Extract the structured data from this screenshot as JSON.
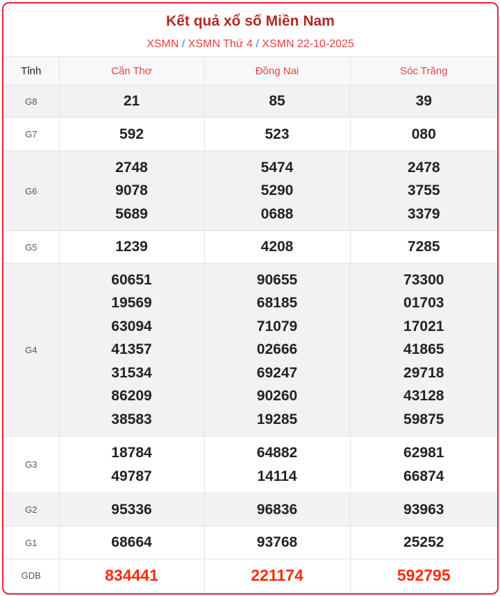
{
  "header": {
    "title": "Kết quả xổ số Miền Nam",
    "breadcrumb": [
      "XSMN",
      "XSMN Thứ 4",
      "XSMN 22-10-2025"
    ],
    "separator": "/"
  },
  "table": {
    "label_header": "Tỉnh",
    "provinces": [
      "Cần Thơ",
      "Đồng Nai",
      "Sóc Trăng"
    ],
    "rows": [
      {
        "label": "G8",
        "values": [
          [
            "21"
          ],
          [
            "85"
          ],
          [
            "39"
          ]
        ]
      },
      {
        "label": "G7",
        "values": [
          [
            "592"
          ],
          [
            "523"
          ],
          [
            "080"
          ]
        ]
      },
      {
        "label": "G6",
        "values": [
          [
            "2748",
            "9078",
            "5689"
          ],
          [
            "5474",
            "5290",
            "0688"
          ],
          [
            "2478",
            "3755",
            "3379"
          ]
        ]
      },
      {
        "label": "G5",
        "values": [
          [
            "1239"
          ],
          [
            "4208"
          ],
          [
            "7285"
          ]
        ]
      },
      {
        "label": "G4",
        "values": [
          [
            "60651",
            "19569",
            "63094",
            "41357",
            "31534",
            "86209",
            "38583"
          ],
          [
            "90655",
            "68185",
            "71079",
            "02666",
            "69247",
            "90260",
            "19285"
          ],
          [
            "73300",
            "01703",
            "17021",
            "41865",
            "29718",
            "43128",
            "59875"
          ]
        ]
      },
      {
        "label": "G3",
        "values": [
          [
            "18784",
            "49787"
          ],
          [
            "64882",
            "14114"
          ],
          [
            "62981",
            "66874"
          ]
        ]
      },
      {
        "label": "G2",
        "values": [
          [
            "95336"
          ],
          [
            "96836"
          ],
          [
            "93963"
          ]
        ]
      },
      {
        "label": "G1",
        "values": [
          [
            "68664"
          ],
          [
            "93768"
          ],
          [
            "25252"
          ]
        ]
      },
      {
        "label": "GDB",
        "values": [
          [
            "834441"
          ],
          [
            "221174"
          ],
          [
            "592795"
          ]
        ]
      }
    ]
  },
  "colors": {
    "accent": "#e8242f",
    "title": "#b02a22",
    "special_prize": "#ff2a0e"
  }
}
